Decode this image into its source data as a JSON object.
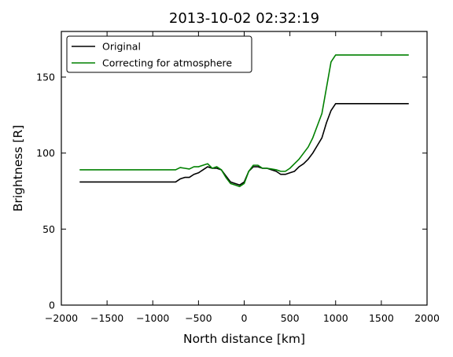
{
  "chart_data": {
    "type": "line",
    "title": "2013-10-02 02:32:19",
    "xlabel": "North distance [km]",
    "ylabel": "Brightness [R]",
    "xlim": [
      -2000,
      2000
    ],
    "ylim": [
      0,
      180
    ],
    "xticks": [
      -2000,
      -1500,
      -1000,
      -500,
      0,
      500,
      1000,
      1500,
      2000
    ],
    "xtick_labels": [
      "−2000",
      "−1500",
      "−1000",
      "−500",
      "0",
      "500",
      "1000",
      "1500",
      "2000"
    ],
    "yticks": [
      0,
      50,
      100,
      150
    ],
    "ytick_labels": [
      "0",
      "50",
      "100",
      "150"
    ],
    "grid": false,
    "legend_position": "top-left",
    "series": [
      {
        "name": "Original",
        "color": "#000000",
        "x": [
          -1800,
          -1000,
          -750,
          -700,
          -650,
          -600,
          -550,
          -500,
          -450,
          -400,
          -350,
          -300,
          -250,
          -200,
          -150,
          -100,
          -50,
          0,
          50,
          100,
          150,
          200,
          250,
          300,
          350,
          400,
          450,
          500,
          550,
          600,
          650,
          700,
          750,
          800,
          850,
          900,
          950,
          1000,
          1800
        ],
        "y": [
          81,
          81,
          81,
          83,
          84,
          84,
          86,
          87,
          89,
          91,
          90,
          90,
          89,
          85,
          81,
          80,
          79,
          81,
          88,
          91,
          91,
          90,
          90,
          89,
          88,
          86,
          86,
          87,
          88,
          91,
          93,
          96,
          100,
          105,
          110,
          120,
          128,
          132.5,
          132.5
        ]
      },
      {
        "name": "Correcting for atmosphere",
        "color": "#008000",
        "x": [
          -1800,
          -1000,
          -750,
          -700,
          -650,
          -600,
          -550,
          -500,
          -450,
          -400,
          -350,
          -300,
          -250,
          -200,
          -150,
          -100,
          -50,
          0,
          50,
          100,
          150,
          200,
          250,
          300,
          350,
          400,
          450,
          500,
          550,
          600,
          650,
          700,
          750,
          800,
          850,
          900,
          950,
          1000,
          1800
        ],
        "y": [
          89,
          89,
          89,
          90.5,
          90,
          89.5,
          91,
          91,
          92,
          93,
          90,
          91,
          89,
          84,
          80,
          79,
          78,
          80,
          88,
          92,
          92,
          90,
          90,
          89.5,
          89,
          88,
          88,
          90,
          93,
          96,
          100,
          104,
          110,
          118,
          126,
          143,
          160,
          164.5,
          164.5
        ]
      }
    ]
  }
}
